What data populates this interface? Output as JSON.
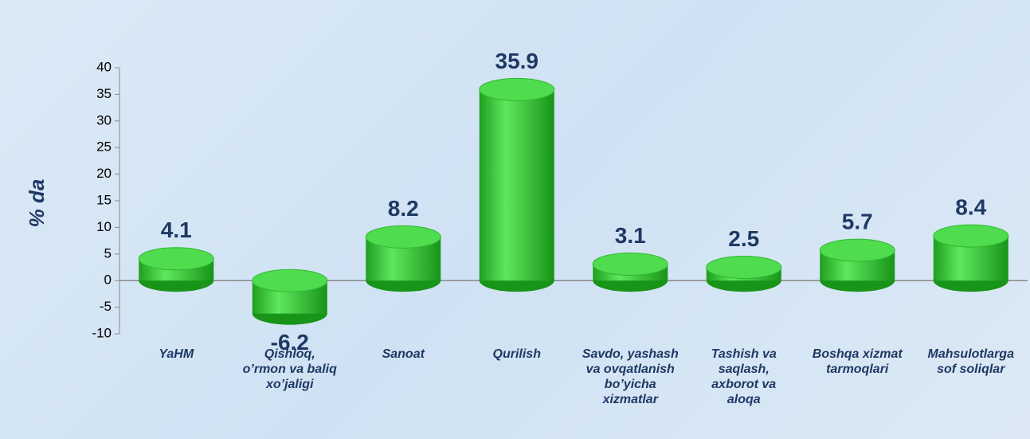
{
  "chart_data": {
    "type": "bar",
    "ylabel": "% da",
    "categories": [
      "YaHM",
      "Qishloq, o’rmon va baliq xo’jaligi",
      "Sanoat",
      "Qurilish",
      "Savdo, yashash va ovqatlanish bo’yicha xizmatlar",
      "Tashish va saqlash, axborot va aloqa",
      "Boshqa xizmat tarmoqlari",
      "Mahsulotlarga sof soliqlar"
    ],
    "values": [
      4.1,
      -6.2,
      8.2,
      35.9,
      3.1,
      2.5,
      5.7,
      8.4
    ],
    "color": "#33cc33",
    "ylim": [
      -10,
      40
    ],
    "yticks": [
      -10,
      -5,
      0,
      5,
      10,
      15,
      20,
      25,
      30,
      35,
      40
    ]
  }
}
